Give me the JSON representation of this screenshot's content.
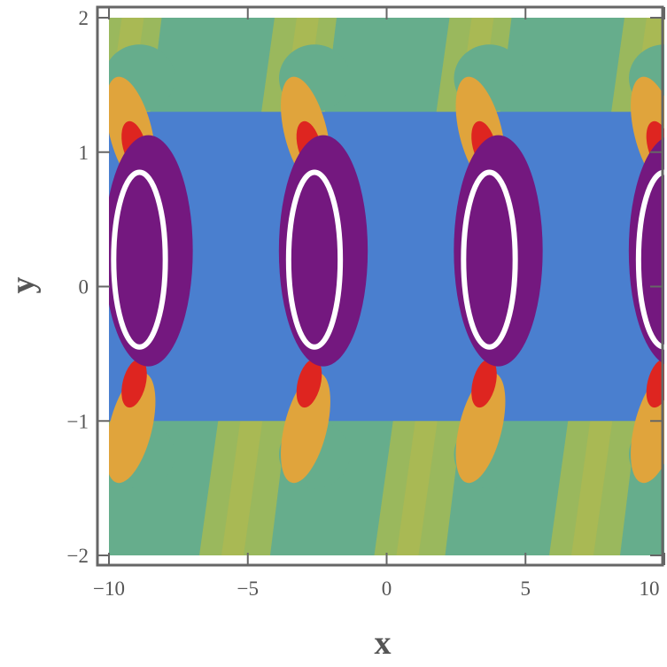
{
  "chart_data": {
    "type": "contour",
    "xlabel": "x",
    "ylabel": "y",
    "xlim": [
      -10,
      10
    ],
    "ylim": [
      -2,
      2
    ],
    "x_ticks": [
      {
        "value": -10,
        "label": "−10"
      },
      {
        "value": -5,
        "label": "−5"
      },
      {
        "value": 0,
        "label": "0"
      },
      {
        "value": 5,
        "label": "5"
      },
      {
        "value": 10,
        "label": "10"
      }
    ],
    "y_ticks": [
      {
        "value": -2,
        "label": "−2"
      },
      {
        "value": -1,
        "label": "−1"
      },
      {
        "value": 0,
        "label": "0"
      },
      {
        "value": 1,
        "label": "1"
      },
      {
        "value": 2,
        "label": "2"
      }
    ],
    "palette": {
      "background": "#66ad8c",
      "level_green": "#9db85b",
      "level_olive": "#b4b94f",
      "level_orange": "#e0a43c",
      "level_red": "#de2520",
      "level_blue": "#4a7fcf",
      "level_purple": "#74187f",
      "contour_line": "#ffffff",
      "frame": "#666666"
    },
    "ring_centers_x": [
      -8.9,
      -2.6,
      3.7,
      10.0
    ],
    "ring_center_y": 0.2,
    "ring_radius_x": 1.0,
    "ring_radius_y": 0.65,
    "contour_line_label": "white ellipse level curves"
  }
}
